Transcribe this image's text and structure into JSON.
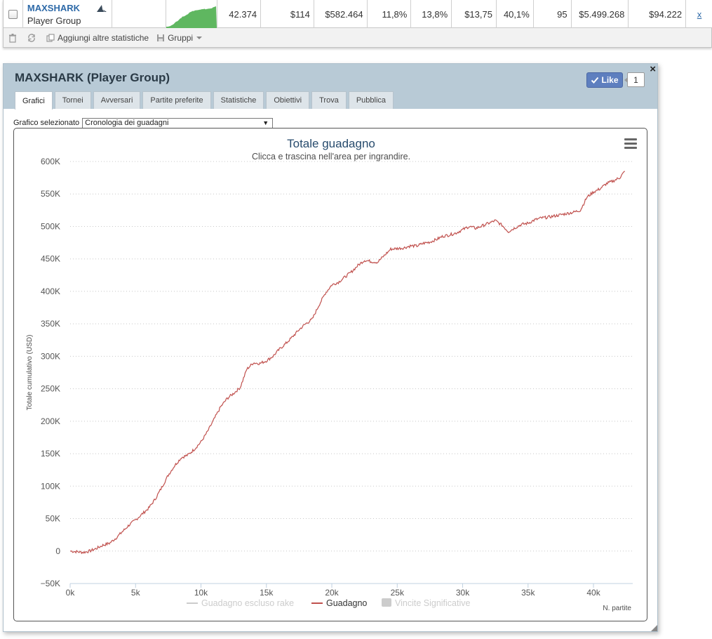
{
  "player_row": {
    "name": "MAXSHARK",
    "group": "Player Group",
    "values": [
      "42.374",
      "$114",
      "$582.464",
      "11,8%",
      "13,8%",
      "$13,75",
      "40,1%",
      "95",
      "$5.499.268",
      "$94.222"
    ],
    "remove_link": "x",
    "sparkline_color": "#5fb760"
  },
  "toolbar": {
    "add_stats_label": "Aggiungi altre statistiche",
    "groups_label": "Gruppi"
  },
  "panel": {
    "title": "MAXSHARK (Player Group)",
    "close_label": "×",
    "like_label": "Like",
    "like_count": "1",
    "tabs": [
      {
        "label": "Grafici",
        "active": true
      },
      {
        "label": "Tornei"
      },
      {
        "label": "Avversari"
      },
      {
        "label": "Partite preferite"
      },
      {
        "label": "Statistiche"
      },
      {
        "label": "Obiettivi"
      },
      {
        "label": "Trova"
      },
      {
        "label": "Pubblica"
      }
    ],
    "graph_select_label": "Grafico selezionato",
    "graph_select_value": "Cronologia dei guadagni"
  },
  "chart_data": {
    "type": "line",
    "title": "Totale guadagno",
    "subtitle": "Clicca e trascina nell'area per ingrandire.",
    "ylabel": "Totale cumulativo (USD)",
    "xlabel": "N. partite",
    "xlim": [
      0,
      43000
    ],
    "ylim": [
      -50000,
      600000
    ],
    "y_ticks": [
      -50000,
      0,
      50000,
      100000,
      150000,
      200000,
      250000,
      300000,
      350000,
      400000,
      450000,
      500000,
      550000,
      600000
    ],
    "y_tick_labels": [
      "−50K",
      "0",
      "50K",
      "100K",
      "150K",
      "200K",
      "250K",
      "300K",
      "350K",
      "400K",
      "450K",
      "500K",
      "550K",
      "600K"
    ],
    "x_ticks": [
      0,
      5000,
      10000,
      15000,
      20000,
      25000,
      30000,
      35000,
      40000
    ],
    "x_tick_labels": [
      "0k",
      "5k",
      "10k",
      "15k",
      "20k",
      "25k",
      "30k",
      "35k",
      "40k"
    ],
    "grid": true,
    "legend_position": "bottom",
    "legend": [
      {
        "name": "Guadagno escluso rake",
        "color": "#cccccc",
        "visible": false,
        "kind": "line"
      },
      {
        "name": "Guadagno",
        "color": "#c0504d",
        "visible": true,
        "kind": "line"
      },
      {
        "name": "Vincite Significative",
        "color": "#cccccc",
        "visible": false,
        "kind": "box"
      }
    ],
    "series": [
      {
        "name": "Guadagno",
        "color": "#c0504d",
        "x": [
          0,
          500,
          1000,
          1500,
          2000,
          2500,
          3000,
          3500,
          4000,
          4500,
          5000,
          5500,
          6000,
          6500,
          7000,
          7500,
          8000,
          8500,
          9000,
          9500,
          10000,
          10500,
          11000,
          11500,
          12000,
          12500,
          13000,
          13500,
          14000,
          14500,
          15000,
          15500,
          16000,
          16500,
          17000,
          17500,
          18000,
          18500,
          19000,
          19500,
          20000,
          20500,
          21000,
          21500,
          22000,
          22500,
          23000,
          23500,
          24000,
          24500,
          25000,
          25500,
          26000,
          26500,
          27000,
          27500,
          28000,
          28500,
          29000,
          29500,
          30000,
          30500,
          31000,
          31500,
          32000,
          32500,
          33000,
          33500,
          34000,
          34500,
          35000,
          35500,
          36000,
          36500,
          37000,
          37500,
          38000,
          38500,
          39000,
          39500,
          40000,
          40500,
          41000,
          41500,
          42000,
          42400
        ],
        "y": [
          0,
          -1000,
          -2000,
          0,
          4000,
          9000,
          12000,
          20000,
          30000,
          40000,
          48000,
          57000,
          66000,
          80000,
          98000,
          117000,
          132000,
          144000,
          148000,
          157000,
          168000,
          184000,
          203000,
          222000,
          235000,
          243000,
          252000,
          280000,
          290000,
          289000,
          293000,
          300000,
          311000,
          320000,
          330000,
          341000,
          350000,
          357000,
          378000,
          397000,
          410000,
          414000,
          422000,
          430000,
          440000,
          448000,
          446000,
          445000,
          455000,
          465000,
          466000,
          467000,
          470000,
          470000,
          474000,
          476000,
          480000,
          485000,
          487000,
          490000,
          495000,
          500000,
          497000,
          501000,
          505000,
          509000,
          502000,
          492000,
          498000,
          503000,
          505000,
          510000,
          513000,
          514000,
          516000,
          518000,
          520000,
          522000,
          525000,
          545000,
          553000,
          558000,
          566000,
          570000,
          575000,
          585000
        ]
      }
    ]
  }
}
